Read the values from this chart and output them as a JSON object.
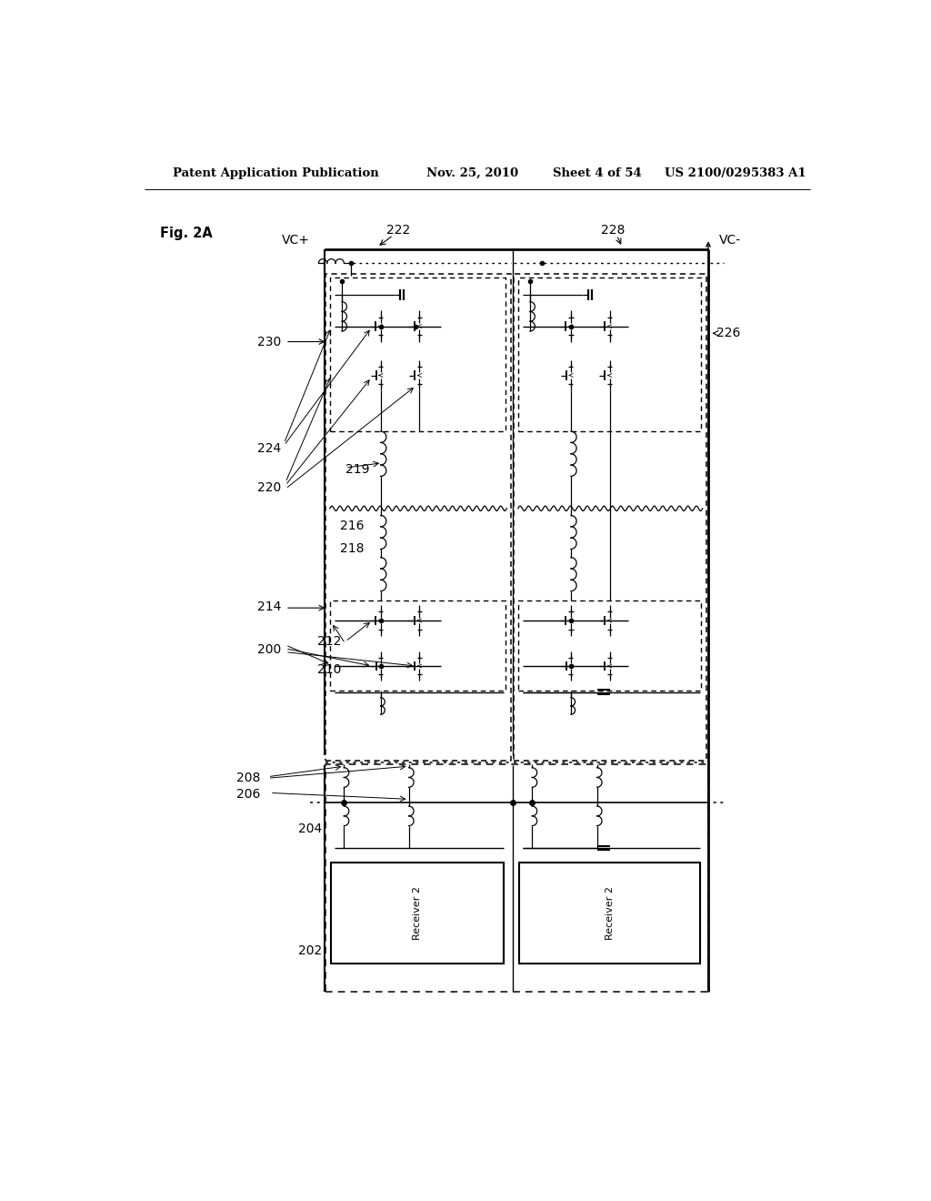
{
  "bg_color": "#ffffff",
  "header_left": "Patent Application Publication",
  "header_date": "Nov. 25, 2010",
  "header_sheet": "Sheet 4 of 54",
  "header_patent": "US 2100/0295383 A1",
  "fig_label": "Fig. 2A",
  "label_vc_plus": "VC+",
  "label_vc_minus": "VC-",
  "label_222": "222",
  "label_228": "228",
  "label_226": "226",
  "label_230": "230",
  "label_224": "224",
  "label_220": "220",
  "label_219": "219",
  "label_216": "216",
  "label_218": "218",
  "label_214": "214",
  "label_212": "212",
  "label_200": "200",
  "label_210": "210",
  "label_208": "208",
  "label_206": "206",
  "label_204": "204",
  "label_202": "202",
  "receiver_text": "Receiver 2"
}
